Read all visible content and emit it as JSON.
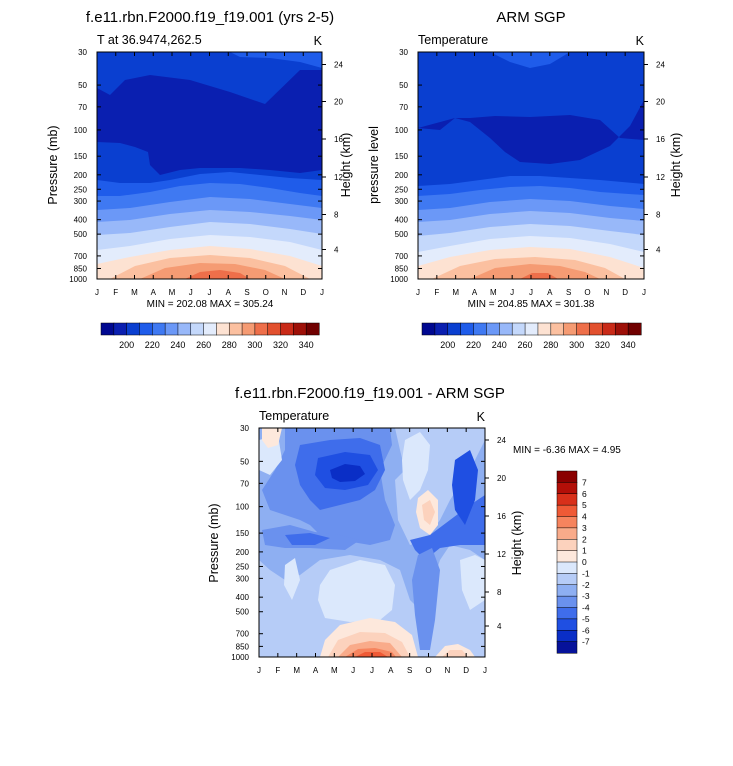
{
  "chart_data": [
    {
      "type": "contour",
      "title": "f.e11.rbn.F2000.f19_f19.001 (yrs 2-5)",
      "subtitle_left": "T at 36.9474,262.5",
      "subtitle_right": "K",
      "ylabel": "Pressure (mb)",
      "ylabel_right": "Height (km)",
      "stats": "MIN = 202.08 MAX = 305.24",
      "x_ticks": [
        "J",
        "F",
        "M",
        "A",
        "M",
        "J",
        "J",
        "A",
        "S",
        "O",
        "N",
        "D",
        "J"
      ],
      "p_ticks": [
        "30",
        "50",
        "70",
        "100",
        "150",
        "200",
        "250",
        "300",
        "400",
        "500",
        "700",
        "850",
        "1000"
      ],
      "p_values": [
        30,
        50,
        70,
        100,
        150,
        200,
        250,
        300,
        400,
        500,
        700,
        850,
        1000
      ],
      "h_ticks": [
        "24",
        "20",
        "16",
        "12",
        "8",
        "4"
      ],
      "h_values": [
        24,
        20,
        16,
        12,
        8,
        4
      ],
      "colorbar_labels": [
        "200",
        "220",
        "240",
        "260",
        "280",
        "300",
        "320",
        "340"
      ],
      "bands_top_p": [
        30,
        200,
        250,
        300,
        400,
        500,
        600,
        700,
        800,
        850,
        900,
        950
      ],
      "bands_color": [
        "#0a3fd0",
        "#1f5cea",
        "#3f79f2",
        "#6b98f7",
        "#98b8f9",
        "#c4d8fb",
        "#e3ecfc",
        "#fde2d2",
        "#fbc0a0",
        "#f59b73",
        "#ee6f4a",
        "#e2502e"
      ]
    },
    {
      "type": "contour",
      "title": "ARM SGP",
      "subtitle_left": "Temperature",
      "subtitle_right": "K",
      "ylabel": "pressure level",
      "ylabel_right": "Height (km)",
      "stats": "MIN = 204.85 MAX = 301.38",
      "x_ticks": [
        "J",
        "F",
        "M",
        "A",
        "M",
        "J",
        "J",
        "A",
        "S",
        "O",
        "N",
        "D",
        "J"
      ],
      "p_ticks": [
        "30",
        "50",
        "70",
        "100",
        "150",
        "200",
        "250",
        "300",
        "400",
        "500",
        "700",
        "850",
        "1000"
      ],
      "p_values": [
        30,
        50,
        70,
        100,
        150,
        200,
        250,
        300,
        400,
        500,
        700,
        850,
        1000
      ],
      "h_ticks": [
        "24",
        "20",
        "16",
        "12",
        "8",
        "4"
      ],
      "h_values": [
        24,
        20,
        16,
        12,
        8,
        4
      ],
      "colorbar_labels": [
        "200",
        "220",
        "240",
        "260",
        "280",
        "300",
        "320",
        "340"
      ],
      "bands_top_p": [
        30,
        200,
        250,
        300,
        400,
        500,
        600,
        700,
        800,
        850,
        900,
        950
      ],
      "bands_color": [
        "#0a3fd0",
        "#1f5cea",
        "#3f79f2",
        "#6b98f7",
        "#98b8f9",
        "#c4d8fb",
        "#e3ecfc",
        "#fde2d2",
        "#fbc0a0",
        "#f59b73",
        "#ee6f4a",
        "#e2502e"
      ]
    },
    {
      "type": "contour",
      "title": "f.e11.rbn.F2000.f19_f19.001 - ARM SGP",
      "subtitle_left": "Temperature",
      "subtitle_right": "K",
      "ylabel": "Pressure (mb)",
      "ylabel_right": "Height (km)",
      "stats": "MIN = -6.36 MAX =  4.95",
      "x_ticks": [
        "J",
        "F",
        "M",
        "A",
        "M",
        "J",
        "J",
        "A",
        "S",
        "O",
        "N",
        "D",
        "J"
      ],
      "p_ticks": [
        "30",
        "50",
        "70",
        "100",
        "150",
        "200",
        "250",
        "300",
        "400",
        "500",
        "700",
        "850",
        "1000"
      ],
      "p_values": [
        30,
        50,
        70,
        100,
        150,
        200,
        250,
        300,
        400,
        500,
        700,
        850,
        1000
      ],
      "h_ticks": [
        "24",
        "20",
        "16",
        "12",
        "8",
        "4"
      ],
      "h_values": [
        24,
        20,
        16,
        12,
        8,
        4
      ],
      "colorbar_labels": [
        "7",
        "6",
        "5",
        "4",
        "3",
        "2",
        "1",
        "0",
        "-1",
        "-2",
        "-3",
        "-4",
        "-5",
        "-6",
        "-7"
      ]
    }
  ],
  "colors": {
    "temperature_scale": [
      "#000890",
      "#0a1fb0",
      "#0a3fd0",
      "#1f5cea",
      "#3f79f2",
      "#6b98f7",
      "#98b8f9",
      "#c4d8fb",
      "#e3ecfc",
      "#fde2d2",
      "#fbc0a0",
      "#f59b73",
      "#ee6f4a",
      "#e2502e",
      "#c92a18",
      "#9e1008",
      "#700000"
    ],
    "difference_scale": [
      "#8a0000",
      "#b30f08",
      "#d8301a",
      "#ef5a36",
      "#f6845e",
      "#f9ab8a",
      "#fcd2bd",
      "#fde8dc",
      "#dbe8fc",
      "#b6ccf7",
      "#8eaff2",
      "#6a91ee",
      "#3f6deb",
      "#1f4fe2",
      "#0a2ec6",
      "#06129a"
    ]
  }
}
